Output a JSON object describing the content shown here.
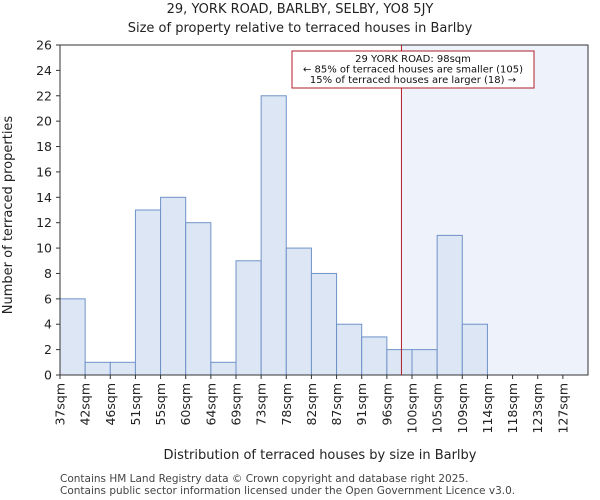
{
  "chart_data": {
    "type": "bar",
    "title": "29, YORK ROAD, BARLBY, SELBY, YO8 5JY",
    "subtitle": "Size of property relative to terraced houses in Barlby",
    "xlabel": "Distribution of terraced houses by size in Barlby",
    "ylabel": "Number of terraced properties",
    "categories": [
      "37sqm",
      "42sqm",
      "46sqm",
      "51sqm",
      "55sqm",
      "60sqm",
      "64sqm",
      "69sqm",
      "73sqm",
      "78sqm",
      "82sqm",
      "87sqm",
      "91sqm",
      "96sqm",
      "100sqm",
      "105sqm",
      "109sqm",
      "114sqm",
      "118sqm",
      "123sqm",
      "127sqm"
    ],
    "values": [
      6,
      1,
      1,
      13,
      14,
      12,
      1,
      9,
      22,
      10,
      8,
      4,
      3,
      2,
      2,
      11,
      4,
      0,
      0,
      0,
      0
    ],
    "ylim": [
      0,
      26
    ],
    "yticks": [
      0,
      2,
      4,
      6,
      8,
      10,
      12,
      14,
      16,
      18,
      20,
      22,
      24,
      26
    ],
    "marker_value_index": 13.58,
    "annotation": {
      "line1": "29 YORK ROAD: 98sqm",
      "line2": "← 85% of terraced houses are smaller (105)",
      "line3": "15% of terraced houses are larger (18) →"
    },
    "colors": {
      "bar_fill": "#dce6f5",
      "bar_stroke": "#6f93c8",
      "marker": "#b01c28",
      "highlight_region": "#eef2fb"
    }
  },
  "footer": {
    "line1": "Contains HM Land Registry data © Crown copyright and database right 2025.",
    "line2": "Contains public sector information licensed under the Open Government Licence v3.0."
  }
}
